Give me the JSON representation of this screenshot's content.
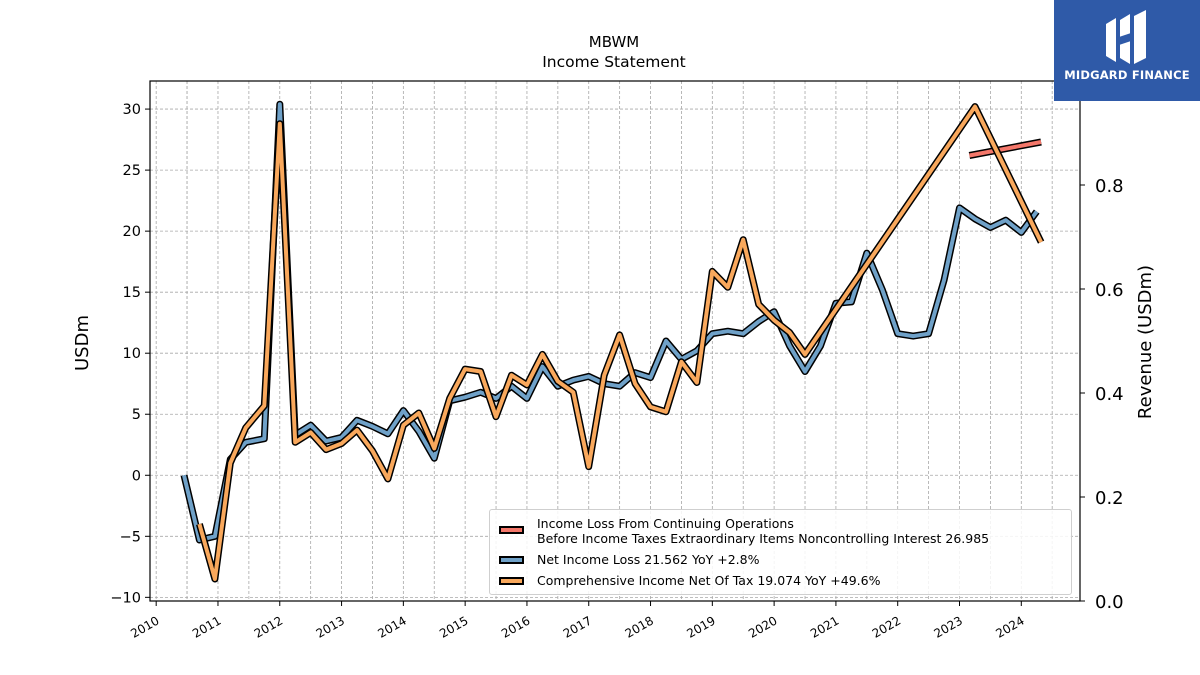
{
  "chart_data": {
    "type": "line",
    "title": "MBWM",
    "subtitle": "Income Statement",
    "ylabel_left": "USDm",
    "ylabel_right": "Revenue (USDm)",
    "ylim_left": [
      -10.3,
      32.3
    ],
    "ylim_right": [
      0.0,
      1.0
    ],
    "yticks_left": [
      "−10",
      "−5",
      "0",
      "5",
      "10",
      "15",
      "20",
      "25",
      "30"
    ],
    "yticks_left_values": [
      -10,
      -5,
      0,
      5,
      10,
      15,
      20,
      25,
      30
    ],
    "yticks_right": [
      "0.0",
      "0.2",
      "0.4",
      "0.6",
      "0.8"
    ],
    "yticks_right_values": [
      0.0,
      0.2,
      0.4,
      0.6,
      0.8
    ],
    "xticks": [
      "2010",
      "2011",
      "2012",
      "2013",
      "2014",
      "2015",
      "2016",
      "2017",
      "2018",
      "2019",
      "2020",
      "2021",
      "2022",
      "2023",
      "2024"
    ],
    "xlim": [
      2009.9,
      2024.95
    ],
    "grid": true,
    "legend_position": "lower-right",
    "series": [
      {
        "name": "Income Loss From Continuing Operations Before Income Taxes Extraordinary Items Noncontrolling Interest",
        "legend_line1": "Income Loss From Continuing Operations",
        "legend_line2": "Before Income Taxes Extraordinary Items Noncontrolling Interest  26.985",
        "color": "#f4776a",
        "x": [
          2023.16,
          2024.32
        ],
        "y": [
          26.2,
          27.3
        ]
      },
      {
        "name": "Net Income Loss",
        "legend_label": "Net Income Loss  21.562 YoY +2.8%",
        "color": "#6fa1c8",
        "x": [
          2010.45,
          2010.7,
          2010.95,
          2011.2,
          2011.45,
          2011.75,
          2012.0,
          2012.25,
          2012.5,
          2012.75,
          2013.0,
          2013.25,
          2013.5,
          2013.75,
          2014.0,
          2014.25,
          2014.5,
          2014.75,
          2015.0,
          2015.25,
          2015.5,
          2015.75,
          2016.0,
          2016.25,
          2016.5,
          2016.75,
          2017.0,
          2017.25,
          2017.5,
          2017.75,
          2018.0,
          2018.25,
          2018.5,
          2018.75,
          2019.0,
          2019.25,
          2019.5,
          2019.75,
          2020.0,
          2020.25,
          2020.5,
          2020.75,
          2021.0,
          2021.25,
          2021.5,
          2021.75,
          2022.0,
          2022.25,
          2022.5,
          2022.75,
          2023.0,
          2023.25,
          2023.5,
          2023.75,
          2024.0,
          2024.25
        ],
        "y": [
          0.0,
          -5.3,
          -5.0,
          1.3,
          2.7,
          3.0,
          30.4,
          3.3,
          4.1,
          2.8,
          3.1,
          4.5,
          4.0,
          3.4,
          5.3,
          3.6,
          1.4,
          6.1,
          6.4,
          6.8,
          6.3,
          7.3,
          6.3,
          8.9,
          7.3,
          7.8,
          8.1,
          7.5,
          7.3,
          8.4,
          8.0,
          11.0,
          9.5,
          10.2,
          11.6,
          11.8,
          11.6,
          12.6,
          13.4,
          10.6,
          8.5,
          10.6,
          14.1,
          14.2,
          18.2,
          15.2,
          11.6,
          11.4,
          11.6,
          16.0,
          21.9,
          21.0,
          20.3,
          20.9,
          19.9,
          21.6
        ]
      },
      {
        "name": "Comprehensive Income Net Of Tax",
        "legend_label": "Comprehensive Income Net Of Tax  19.074 YoY +49.6%",
        "color": "#f9a85c",
        "x": [
          2010.7,
          2010.95,
          2011.2,
          2011.45,
          2011.75,
          2012.0,
          2012.25,
          2012.5,
          2012.75,
          2013.0,
          2013.25,
          2013.5,
          2013.75,
          2014.0,
          2014.25,
          2014.5,
          2014.75,
          2015.0,
          2015.25,
          2015.5,
          2015.75,
          2016.0,
          2016.25,
          2016.5,
          2016.75,
          2017.0,
          2017.25,
          2017.5,
          2017.75,
          2018.0,
          2018.25,
          2018.5,
          2018.75,
          2019.0,
          2019.25,
          2019.5,
          2019.75,
          2020.0,
          2020.25,
          2020.5,
          2023.25,
          2024.32
        ],
        "y": [
          -4.0,
          -8.5,
          1.0,
          3.9,
          5.7,
          28.8,
          2.7,
          3.5,
          2.1,
          2.6,
          3.7,
          2.0,
          -0.3,
          4.1,
          5.1,
          2.2,
          6.3,
          8.7,
          8.5,
          4.8,
          8.2,
          7.4,
          9.9,
          7.7,
          6.8,
          0.7,
          8.2,
          11.5,
          7.5,
          5.6,
          5.2,
          9.3,
          7.6,
          16.7,
          15.4,
          19.3,
          14.0,
          12.7,
          11.7,
          9.9,
          30.2,
          19.1
        ]
      }
    ]
  },
  "logo": {
    "text": "MIDGARD FINANCE",
    "icon": "midgard-finance-logo-icon"
  }
}
